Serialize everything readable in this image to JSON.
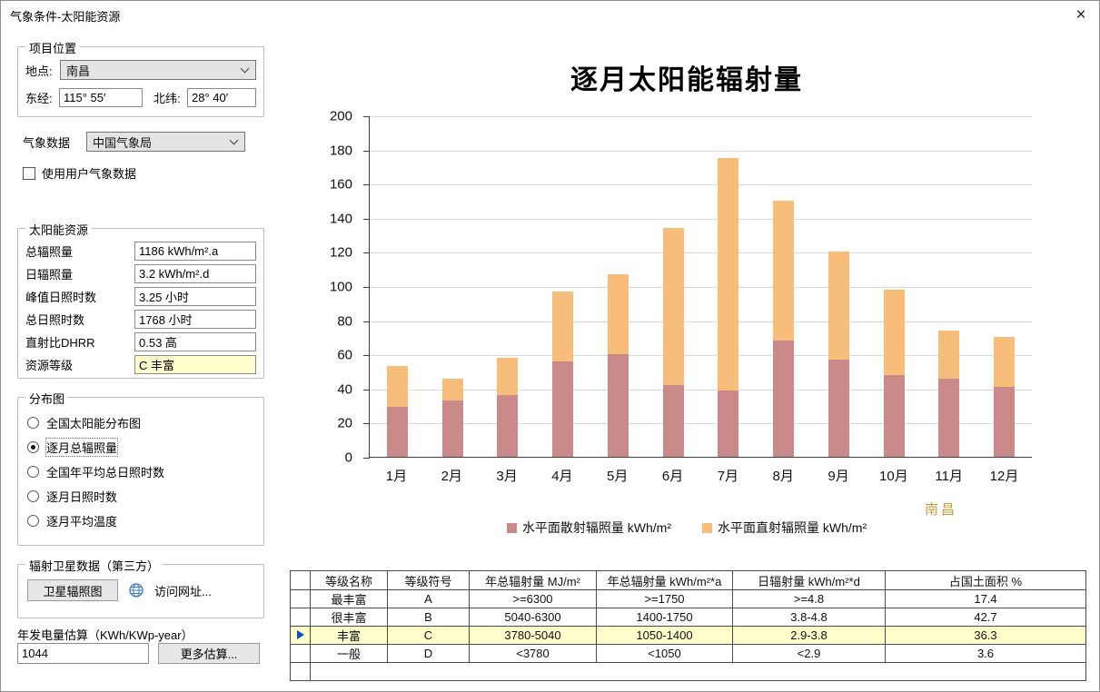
{
  "window": {
    "title": "气象条件-太阳能资源",
    "close_label": "×"
  },
  "left": {
    "location_group": {
      "title": "项目位置",
      "place_label": "地点:",
      "place_value": "南昌",
      "lon_label": "东经:",
      "lon_value": "115° 55′",
      "lat_label": "北纬:",
      "lat_value": "28° 40′"
    },
    "met_label": "气象数据",
    "met_value": "中国气象局",
    "user_checkbox_label": "使用用户气象数据",
    "resource_group": {
      "title": "太阳能资源",
      "fields": [
        {
          "label": "总辐照量",
          "value": "1186 kWh/m².a",
          "highlight": false
        },
        {
          "label": "日辐照量",
          "value": "3.2 kWh/m².d",
          "highlight": false
        },
        {
          "label": "峰值日照时数",
          "value": "3.25 小时",
          "highlight": false
        },
        {
          "label": "总日照时数",
          "value": "1768 小时",
          "highlight": false
        },
        {
          "label": "直射比DHRR",
          "value": "0.53 高",
          "highlight": false
        },
        {
          "label": "资源等级",
          "value": "C 丰富",
          "highlight": true
        }
      ]
    },
    "distribution_group": {
      "title": "分布图",
      "options": [
        {
          "label": "全国太阳能分布图",
          "selected": false
        },
        {
          "label": "逐月总辐照量",
          "selected": true
        },
        {
          "label": "全国年平均总日照时数",
          "selected": false
        },
        {
          "label": "逐月日照时数",
          "selected": false
        },
        {
          "label": "逐月平均温度",
          "selected": false
        }
      ]
    },
    "satellite_group": {
      "title": "辐射卫星数据（第三方）",
      "button_label": "卫星辐照图",
      "link_label": "访问网址..."
    },
    "estimate": {
      "label": "年发电量估算（KWh/KWp-year）",
      "value": "1044",
      "more_button": "更多估算..."
    }
  },
  "chart_data": {
    "type": "bar",
    "stacked": true,
    "title": "逐月太阳能辐射量",
    "categories": [
      "1月",
      "2月",
      "3月",
      "4月",
      "5月",
      "6月",
      "7月",
      "8月",
      "9月",
      "10月",
      "11月",
      "12月"
    ],
    "series": [
      {
        "name": "水平面散射辐照量 kWh/m²",
        "color": "#cb8a8a",
        "values": [
          29,
          33,
          36,
          56,
          60,
          42,
          39,
          68,
          57,
          48,
          46,
          41
        ]
      },
      {
        "name": "水平面直射辐照量 kWh/m²",
        "color": "#f9bd7b",
        "values": [
          24,
          13,
          22,
          41,
          47,
          92,
          136,
          82,
          63,
          50,
          28,
          29
        ]
      }
    ],
    "totals": [
      53,
      46,
      58,
      97,
      107,
      134,
      175,
      150,
      120,
      98,
      74,
      70
    ],
    "ylim": [
      0,
      200
    ],
    "ytick_step": 20,
    "grid": true,
    "legend_position": "bottom",
    "annotation": "南昌",
    "annotation_color": "#cf9a3a"
  },
  "table": {
    "headers": [
      "等级名称",
      "等级符号",
      "年总辐射量 MJ/m²",
      "年总辐射量 kWh/m²*a",
      "日辐射量 kWh/m²*d",
      "占国土面积 %"
    ],
    "rows": [
      {
        "cells": [
          "最丰富",
          "A",
          ">=6300",
          ">=1750",
          ">=4.8",
          "17.4"
        ],
        "selected": false
      },
      {
        "cells": [
          "很丰富",
          "B",
          "5040-6300",
          "1400-1750",
          "3.8-4.8",
          "42.7"
        ],
        "selected": false
      },
      {
        "cells": [
          "丰富",
          "C",
          "3780-5040",
          "1050-1400",
          "2.9-3.8",
          "36.3"
        ],
        "selected": true
      },
      {
        "cells": [
          "一般",
          "D",
          "<3780",
          "<1050",
          "<2.9",
          "3.6"
        ],
        "selected": false
      }
    ]
  }
}
